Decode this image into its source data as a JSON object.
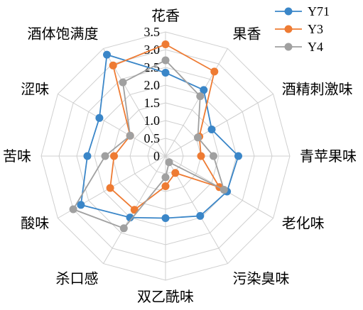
{
  "chart_data": {
    "type": "radar",
    "axes": [
      "花香",
      "果香",
      "酒精刺激味",
      "青苹果味",
      "老化味",
      "污染臭味",
      "双乙酰味",
      "杀口感",
      "酸味",
      "苦味",
      "涩味",
      "酒体饱满度"
    ],
    "r_ticks": [
      "0",
      "0.5",
      "1.0",
      "1.5",
      "2.0",
      "2.5",
      "3.0",
      "3.5"
    ],
    "r_range": [
      0,
      3.5
    ],
    "grid": true,
    "legend_position": "top-right",
    "series": [
      {
        "name": "Y71",
        "color": "#3a86c8",
        "values": [
          2.35,
          2.15,
          1.5,
          2.05,
          2.0,
          1.95,
          1.75,
          2.0,
          2.75,
          2.2,
          2.15,
          3.3
        ]
      },
      {
        "name": "Y3",
        "color": "#ee7b33",
        "values": [
          3.15,
          2.75,
          1.1,
          1.0,
          1.75,
          0.55,
          0.85,
          1.75,
          1.8,
          1.45,
          1.15,
          2.95
        ]
      },
      {
        "name": "Y4",
        "color": "#a0a0a0",
        "values": [
          2.7,
          1.95,
          1.05,
          1.35,
          1.9,
          0.2,
          0.6,
          2.35,
          3.0,
          1.7,
          1.15,
          2.4
        ]
      }
    ]
  }
}
